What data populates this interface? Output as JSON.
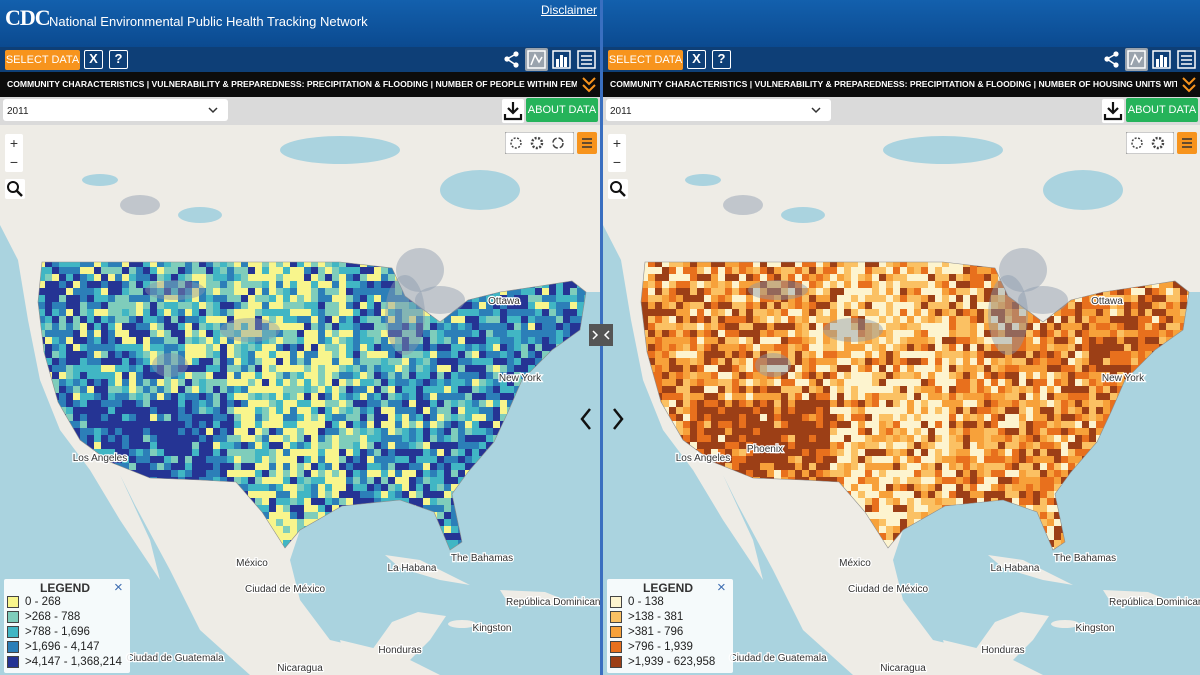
{
  "header": {
    "logo": "CDC",
    "title": "National Environmental Public Health Tracking Network",
    "disclaimer": "Disclaimer"
  },
  "panels": [
    {
      "select_data": "SELECT DATA",
      "close": "X",
      "help": "?",
      "indicator": "COMMUNITY CHARACTERISTICS | VULNERABILITY & PREPAREDNESS: PRECIPITATION & FLOODING | NUMBER OF PEOPLE WITHIN FEMA DE...",
      "year": "2011",
      "about_data": "ABOUT DATA",
      "zoom_in": "+",
      "zoom_out": "−",
      "legend": {
        "title": "LEGEND",
        "close": "×",
        "items": [
          {
            "label": "0 - 268",
            "color": "#f8f58c"
          },
          {
            "label": ">268 - 788",
            "color": "#7fcdbb"
          },
          {
            "label": ">788 - 1,696",
            "color": "#41b6c4"
          },
          {
            "label": ">1,696 - 4,147",
            "color": "#2c7fb8"
          },
          {
            "label": ">4,147 - 1,368,214",
            "color": "#253494"
          }
        ]
      },
      "places": [
        "Ottawa",
        "New York",
        "Los Angeles",
        "México",
        "The Bahamas",
        "La Habana",
        "Ciudad de México",
        "Kingston",
        "República Dominicana",
        "Honduras",
        "Ciudad de Guatemala",
        "Nicaragua"
      ]
    },
    {
      "select_data": "SELECT DATA",
      "close": "X",
      "help": "?",
      "indicator": "COMMUNITY CHARACTERISTICS | VULNERABILITY & PREPAREDNESS: PRECIPITATION & FLOODING | NUMBER OF HOUSING UNITS WITHIN F...",
      "year": "2011",
      "about_data": "ABOUT DATA",
      "zoom_in": "+",
      "zoom_out": "−",
      "legend": {
        "title": "LEGEND",
        "close": "×",
        "items": [
          {
            "label": "0 - 138",
            "color": "#fdf4cf"
          },
          {
            "label": ">138 - 381",
            "color": "#fbc163"
          },
          {
            "label": ">381 - 796",
            "color": "#f7a13a"
          },
          {
            "label": ">796 - 1,939",
            "color": "#e8701d"
          },
          {
            "label": ">1,939 - 623,958",
            "color": "#9c3f16"
          }
        ]
      },
      "places": [
        "Ottawa",
        "New York",
        "Los Angeles",
        "México",
        "The Bahamas",
        "La Habana",
        "Ciudad de México",
        "Kingston",
        "República Dominicana",
        "Honduras",
        "Ciudad de Guatemala",
        "Nicaragua",
        "Phoenix"
      ]
    }
  ]
}
